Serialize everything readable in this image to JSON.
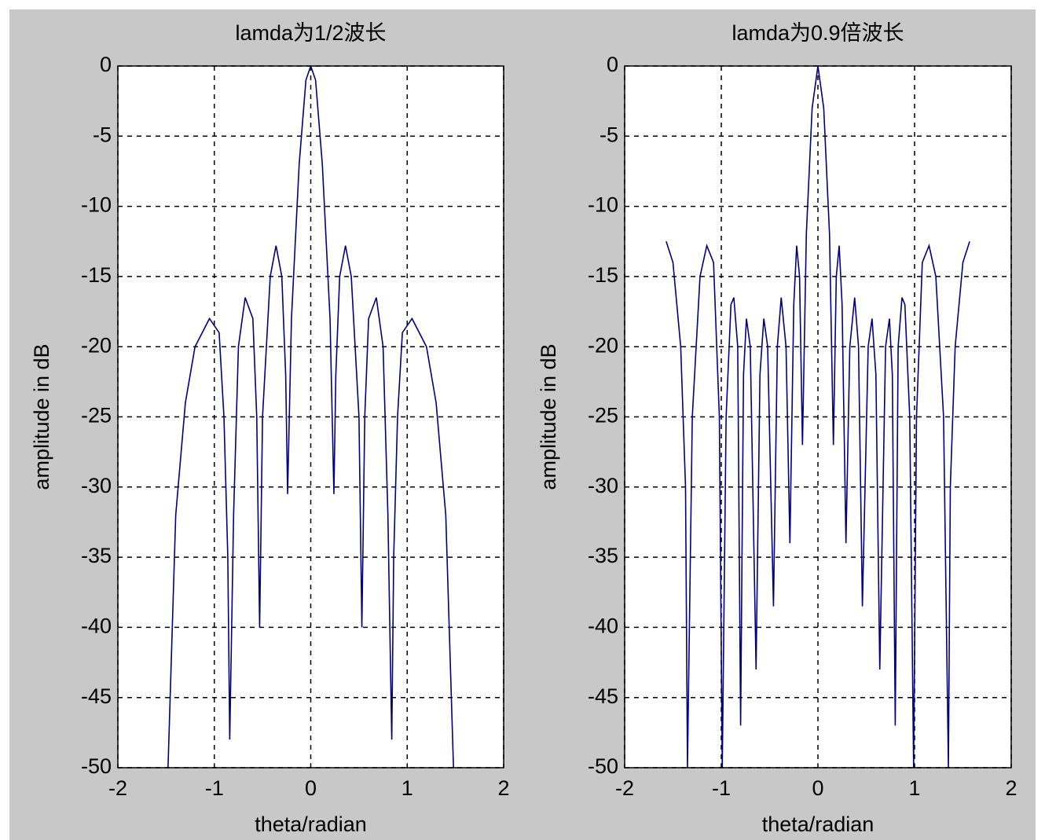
{
  "chart_data": [
    {
      "type": "line",
      "title": "lamda为1/2波长",
      "xlabel": "theta/radian",
      "ylabel": "amplitude in dB",
      "x": [
        -1.48,
        -1.4,
        -1.3,
        -1.2,
        -1.05,
        -0.95,
        -0.9,
        -0.86,
        -0.84,
        -0.8,
        -0.75,
        -0.68,
        -0.6,
        -0.56,
        -0.53,
        -0.5,
        -0.42,
        -0.36,
        -0.3,
        -0.26,
        -0.24,
        -0.2,
        -0.12,
        -0.05,
        0,
        0.05,
        0.12,
        0.2,
        0.24,
        0.26,
        0.3,
        0.36,
        0.42,
        0.5,
        0.53,
        0.56,
        0.6,
        0.68,
        0.75,
        0.8,
        0.84,
        0.86,
        0.9,
        0.95,
        1.05,
        1.2,
        1.3,
        1.4,
        1.48
      ],
      "values": [
        -50,
        -32,
        -24,
        -20,
        -18,
        -19,
        -25,
        -35,
        -48,
        -32,
        -20,
        -16.5,
        -18,
        -25,
        -40,
        -25,
        -15,
        -12.8,
        -15,
        -22,
        -30.5,
        -18,
        -7,
        -1,
        0,
        -1,
        -7,
        -18,
        -30.5,
        -22,
        -15,
        -12.8,
        -15,
        -25,
        -40,
        -25,
        -18,
        -16.5,
        -20,
        -32,
        -48,
        -35,
        -25,
        -19,
        -18,
        -20,
        -24,
        -32,
        -50
      ],
      "color": "#000080",
      "xlim": [
        -2,
        2
      ],
      "xticks": [
        -2,
        -1,
        0,
        1,
        2
      ],
      "ylim": [
        -50,
        0
      ],
      "yticks": [
        -50,
        -45,
        -40,
        -35,
        -30,
        -25,
        -20,
        -15,
        -10,
        -5,
        0
      ],
      "grid": true
    },
    {
      "type": "line",
      "title": "lamda为0.9倍波长",
      "xlabel": "theta/radian",
      "ylabel": "amplitude in dB",
      "x": [
        -1.57,
        -1.5,
        -1.42,
        -1.37,
        -1.35,
        -1.3,
        -1.22,
        -1.15,
        -1.08,
        -1.02,
        -0.99,
        -0.95,
        -0.9,
        -0.87,
        -0.83,
        -0.8,
        -0.77,
        -0.74,
        -0.7,
        -0.64,
        -0.6,
        -0.56,
        -0.52,
        -0.46,
        -0.42,
        -0.38,
        -0.33,
        -0.29,
        -0.25,
        -0.22,
        -0.19,
        -0.16,
        -0.12,
        -0.06,
        0,
        0.06,
        0.12,
        0.16,
        0.19,
        0.22,
        0.25,
        0.29,
        0.33,
        0.38,
        0.42,
        0.46,
        0.52,
        0.56,
        0.6,
        0.64,
        0.7,
        0.74,
        0.77,
        0.8,
        0.83,
        0.87,
        0.9,
        0.95,
        0.99,
        1.02,
        1.08,
        1.15,
        1.22,
        1.3,
        1.35,
        1.37,
        1.42,
        1.5,
        1.57
      ],
      "values": [
        -12.5,
        -14,
        -20,
        -30,
        -50,
        -25,
        -15,
        -12.8,
        -14,
        -25,
        -50,
        -25,
        -17,
        -16.5,
        -20,
        -47,
        -22,
        -18,
        -20,
        -43,
        -22,
        -18,
        -20,
        -38.5,
        -20,
        -16.5,
        -20,
        -34,
        -17,
        -12.8,
        -15,
        -27,
        -12,
        -3,
        0,
        -3,
        -12,
        -27,
        -15,
        -12.8,
        -17,
        -34,
        -20,
        -16.5,
        -20,
        -38.5,
        -20,
        -18,
        -22,
        -43,
        -20,
        -18,
        -22,
        -47,
        -20,
        -16.5,
        -17,
        -25,
        -50,
        -25,
        -14,
        -12.8,
        -15,
        -25,
        -50,
        -30,
        -20,
        -14,
        -12.5
      ],
      "color": "#000080",
      "xlim": [
        -2,
        2
      ],
      "xticks": [
        -2,
        -1,
        0,
        1,
        2
      ],
      "ylim": [
        -50,
        0
      ],
      "yticks": [
        -50,
        -45,
        -40,
        -35,
        -30,
        -25,
        -20,
        -15,
        -10,
        -5,
        0
      ],
      "grid": true
    }
  ]
}
